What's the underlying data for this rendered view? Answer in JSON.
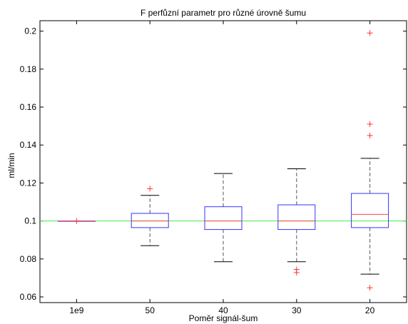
{
  "chart_data": {
    "type": "box",
    "title": "F perfůzní parametr pro různé úrovně šumu",
    "xlabel": "Poměr signál-šum",
    "ylabel": "ml/min",
    "ylim": [
      0.057,
      0.2055
    ],
    "yticks": [
      0.06,
      0.08,
      0.1,
      0.12,
      0.14,
      0.16,
      0.18,
      0.2
    ],
    "ytick_labels": [
      "0.06",
      "0.08",
      "0.1",
      "0.12",
      "0.14",
      "0.16",
      "0.18",
      "0.2"
    ],
    "categories": [
      "1e9",
      "50",
      "40",
      "30",
      "20"
    ],
    "reference_line": 0.1,
    "boxes": [
      {
        "category": "1e9",
        "whisker_low": 0.1,
        "q1": 0.1,
        "median": 0.1,
        "q3": 0.1,
        "whisker_high": 0.1,
        "outliers": [
          0.1
        ]
      },
      {
        "category": "50",
        "whisker_low": 0.087,
        "q1": 0.0965,
        "median": 0.1,
        "q3": 0.104,
        "whisker_high": 0.1135,
        "outliers": [
          0.117
        ]
      },
      {
        "category": "40",
        "whisker_low": 0.0785,
        "q1": 0.0955,
        "median": 0.1,
        "q3": 0.1075,
        "whisker_high": 0.125,
        "outliers": []
      },
      {
        "category": "30",
        "whisker_low": 0.0785,
        "q1": 0.0955,
        "median": 0.1,
        "q3": 0.1085,
        "whisker_high": 0.1275,
        "outliers": [
          0.0745,
          0.0728
        ]
      },
      {
        "category": "20",
        "whisker_low": 0.072,
        "q1": 0.0965,
        "median": 0.1035,
        "q3": 0.1145,
        "whisker_high": 0.133,
        "outliers": [
          0.199,
          0.151,
          0.145,
          0.0648
        ]
      }
    ],
    "grid": false,
    "colors": {
      "box": "#3333ff",
      "median": "#ff4444",
      "whisker": "#555555",
      "outlier": "#ff3333",
      "reference_line": "#44ee44",
      "axis": "#000000"
    }
  }
}
